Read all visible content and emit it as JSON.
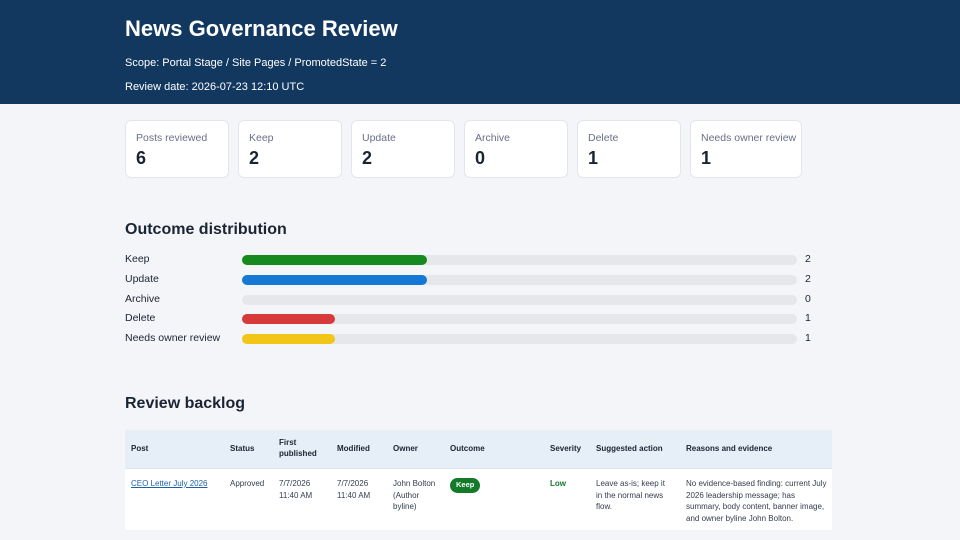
{
  "header": {
    "title": "News Governance Review",
    "scope": "Scope: Portal Stage / Site Pages / PromotedState = 2",
    "review_date": "Review date: 2026-07-23 12:10 UTC"
  },
  "summary": [
    {
      "label": "Posts reviewed",
      "value": "6"
    },
    {
      "label": "Keep",
      "value": "2"
    },
    {
      "label": "Update",
      "value": "2"
    },
    {
      "label": "Archive",
      "value": "0"
    },
    {
      "label": "Delete",
      "value": "1"
    },
    {
      "label": "Needs owner review",
      "value": "1"
    }
  ],
  "distribution": {
    "title": "Outcome distribution",
    "max": 6,
    "rows": [
      {
        "label": "Keep",
        "count": "2",
        "value": 2,
        "color": "#168a1e"
      },
      {
        "label": "Update",
        "count": "2",
        "value": 2,
        "color": "#1478d4"
      },
      {
        "label": "Archive",
        "count": "0",
        "value": 0,
        "color": "#9aa1ab"
      },
      {
        "label": "Delete",
        "count": "1",
        "value": 1,
        "color": "#d63a3a"
      },
      {
        "label": "Needs owner review",
        "count": "1",
        "value": 1,
        "color": "#f2c617"
      }
    ]
  },
  "backlog": {
    "title": "Review backlog",
    "columns": [
      "Post",
      "Status",
      "First published",
      "Modified",
      "Owner",
      "Outcome",
      "Severity",
      "Suggested action",
      "Reasons and evidence"
    ],
    "rows": [
      {
        "post": "CEO Letter July 2026",
        "status": "Approved",
        "first_published": "7/7/2026 11:40 AM",
        "modified": "7/7/2026 11:40 AM",
        "owner": "John Bolton (Author byline)",
        "outcome": "Keep",
        "severity": "Low",
        "action": "Leave as-is; keep it in the normal news flow.",
        "reasons": "No evidence-based finding: current July 2026 leadership message; has summary, body content, banner image, and owner byline John Bolton."
      }
    ]
  }
}
